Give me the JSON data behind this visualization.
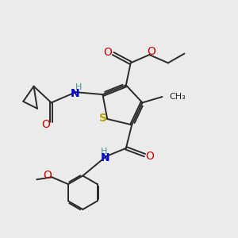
{
  "bg_color": "#ebebeb",
  "bond_color": "#2a2a2a",
  "bond_width": 1.4,
  "figsize": [
    3.0,
    3.0
  ],
  "dpi": 100,
  "xlim": [
    0,
    10
  ],
  "ylim": [
    0,
    10
  ],
  "S_color": "#b8a000",
  "N_color": "#0000cc",
  "O_color": "#cc0000",
  "H_color": "#4a9090",
  "C_color": "#2a2a2a"
}
